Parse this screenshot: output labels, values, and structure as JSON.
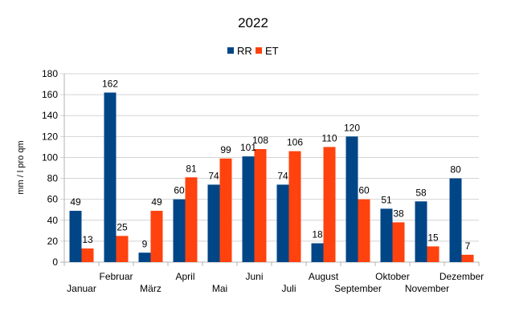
{
  "chart_data": {
    "type": "bar",
    "title": "2022",
    "xlabel": "",
    "ylabel": "mm / l pro qm",
    "ylim": [
      0,
      180
    ],
    "yticks": [
      0,
      20,
      40,
      60,
      80,
      100,
      120,
      140,
      160,
      180
    ],
    "grid": true,
    "legend_position": "top",
    "categories": [
      "Januar",
      "Februar",
      "März",
      "April",
      "Mai",
      "Juni",
      "Juli",
      "August",
      "September",
      "Oktober",
      "November",
      "Dezember"
    ],
    "series": [
      {
        "name": "RR",
        "color": "#004586",
        "values": [
          49,
          162,
          9,
          60,
          74,
          101,
          74,
          18,
          120,
          51,
          58,
          80
        ]
      },
      {
        "name": "ET",
        "color": "#ff420e",
        "values": [
          13,
          25,
          49,
          81,
          99,
          108,
          106,
          110,
          60,
          38,
          15,
          7
        ]
      }
    ]
  }
}
